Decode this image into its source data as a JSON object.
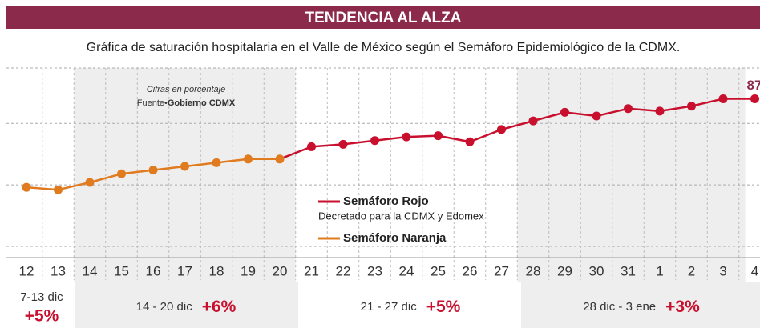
{
  "chart_data": {
    "type": "line",
    "title": "TENDENCIA AL ALZA",
    "subtitle": "Gráfica de saturación hospitalaria en el Valle de México según el Semáforo Epidemiológico de la CDMX.",
    "note": "Cifras en porcentaje",
    "source_label": "Fuente•",
    "source": "Gobierno CDMX",
    "categories": [
      "12",
      "13",
      "14",
      "15",
      "16",
      "17",
      "18",
      "19",
      "20",
      "21",
      "22",
      "23",
      "24",
      "25",
      "26",
      "27",
      "28",
      "29",
      "30",
      "31",
      "1",
      "2",
      "3",
      "4"
    ],
    "series": [
      {
        "name": "Semáforo Naranja",
        "color": "#e07b20",
        "values": [
          79.8,
          79.6,
          80.2,
          80.9,
          81.2,
          81.5,
          81.8,
          82.1,
          82.1,
          null,
          null,
          null,
          null,
          null,
          null,
          null,
          null,
          null,
          null,
          null,
          null,
          null,
          null,
          null
        ]
      },
      {
        "name": "Semáforo Rojo",
        "description": "Decretado para la CDMX y Edomex",
        "color": "#c8102e",
        "values": [
          null,
          null,
          null,
          null,
          null,
          null,
          null,
          null,
          null,
          83.1,
          83.3,
          83.6,
          83.9,
          84.0,
          83.5,
          84.5,
          85.2,
          85.9,
          85.6,
          86.2,
          86.0,
          86.4,
          87,
          87
        ]
      }
    ],
    "ylim": [
      75,
      89.5
    ],
    "yticks": [
      75,
      80,
      85
    ],
    "grid": true,
    "weeks": [
      {
        "label": "7-13 dic",
        "change": "+5%"
      },
      {
        "label": "14 - 20 dic",
        "change": "+6%"
      },
      {
        "label": "21 - 27 dic",
        "change": "+5%"
      },
      {
        "label": "28 dic - 3 ene",
        "change": "+3%"
      }
    ]
  }
}
